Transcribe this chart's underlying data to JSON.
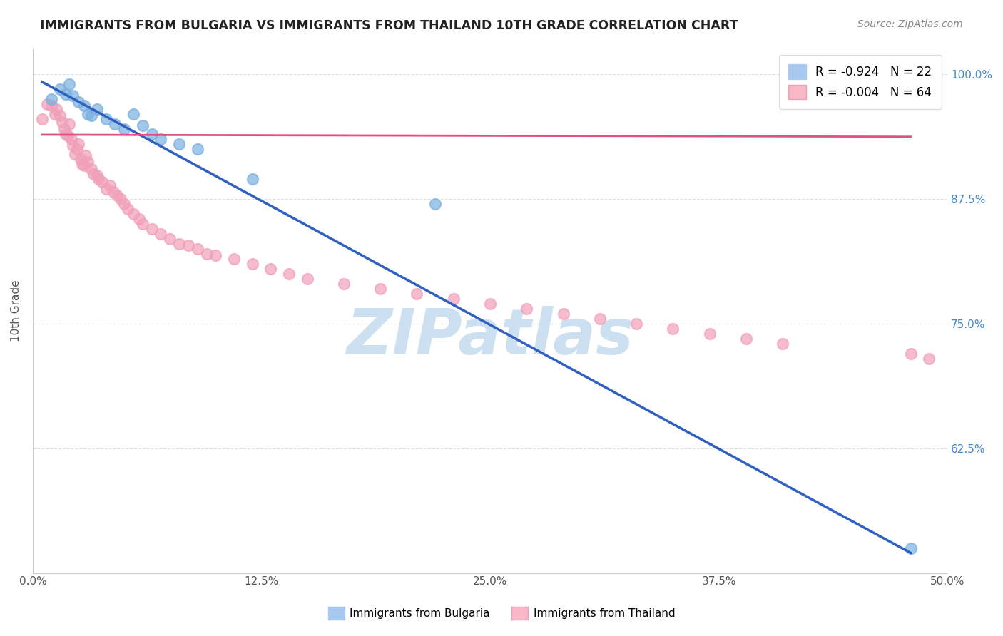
{
  "title": "IMMIGRANTS FROM BULGARIA VS IMMIGRANTS FROM THAILAND 10TH GRADE CORRELATION CHART",
  "source": "Source: ZipAtlas.com",
  "ylabel": "10th Grade",
  "xlim": [
    0.0,
    0.5
  ],
  "ylim": [
    0.5,
    1.025
  ],
  "xtick_labels": [
    "0.0%",
    "12.5%",
    "25.0%",
    "37.5%",
    "50.0%"
  ],
  "xtick_vals": [
    0.0,
    0.125,
    0.25,
    0.375,
    0.5
  ],
  "ytick_labels": [
    "62.5%",
    "75.0%",
    "87.5%",
    "100.0%"
  ],
  "ytick_vals": [
    0.625,
    0.75,
    0.875,
    1.0
  ],
  "legend_labels": [
    "R = -0.924   N = 22",
    "R = -0.004   N = 64"
  ],
  "legend_colors": [
    "#a8c8f0",
    "#f8b8c8"
  ],
  "bulgaria_color": "#7ab0e0",
  "thailand_color": "#f0a0b8",
  "line_bulgaria_color": "#3060c0",
  "line_thailand_color": "#e05080",
  "watermark": "ZIPatlas",
  "watermark_color": "#c8ddf0",
  "bg_color": "#ffffff",
  "grid_color": "#e0e0e0",
  "bulgaria_x": [
    0.01,
    0.015,
    0.018,
    0.02,
    0.022,
    0.025,
    0.028,
    0.03,
    0.032,
    0.035,
    0.04,
    0.045,
    0.05,
    0.055,
    0.06,
    0.065,
    0.07,
    0.08,
    0.09,
    0.12,
    0.22,
    0.48
  ],
  "bulgaria_y": [
    0.975,
    0.985,
    0.98,
    0.99,
    0.978,
    0.972,
    0.968,
    0.96,
    0.958,
    0.965,
    0.955,
    0.95,
    0.945,
    0.96,
    0.948,
    0.94,
    0.935,
    0.93,
    0.925,
    0.895,
    0.87,
    0.525
  ],
  "thailand_x": [
    0.005,
    0.008,
    0.01,
    0.012,
    0.013,
    0.015,
    0.016,
    0.017,
    0.018,
    0.019,
    0.02,
    0.021,
    0.022,
    0.023,
    0.024,
    0.025,
    0.026,
    0.027,
    0.028,
    0.029,
    0.03,
    0.032,
    0.033,
    0.035,
    0.036,
    0.038,
    0.04,
    0.042,
    0.044,
    0.046,
    0.048,
    0.05,
    0.052,
    0.055,
    0.058,
    0.06,
    0.065,
    0.07,
    0.075,
    0.08,
    0.085,
    0.09,
    0.095,
    0.1,
    0.11,
    0.12,
    0.13,
    0.14,
    0.15,
    0.17,
    0.19,
    0.21,
    0.23,
    0.25,
    0.27,
    0.29,
    0.31,
    0.33,
    0.35,
    0.37,
    0.39,
    0.41,
    0.48,
    0.49
  ],
  "thailand_y": [
    0.955,
    0.97,
    0.968,
    0.96,
    0.965,
    0.958,
    0.952,
    0.945,
    0.94,
    0.938,
    0.95,
    0.935,
    0.928,
    0.92,
    0.925,
    0.93,
    0.915,
    0.91,
    0.908,
    0.918,
    0.912,
    0.905,
    0.9,
    0.898,
    0.895,
    0.892,
    0.885,
    0.888,
    0.882,
    0.878,
    0.875,
    0.87,
    0.865,
    0.86,
    0.855,
    0.85,
    0.845,
    0.84,
    0.835,
    0.83,
    0.828,
    0.825,
    0.82,
    0.818,
    0.815,
    0.81,
    0.805,
    0.8,
    0.795,
    0.79,
    0.785,
    0.78,
    0.775,
    0.77,
    0.765,
    0.76,
    0.755,
    0.75,
    0.745,
    0.74,
    0.735,
    0.73,
    0.72,
    0.715
  ],
  "bulgaria_line_x": [
    0.005,
    0.48
  ],
  "bulgaria_line_y": [
    0.992,
    0.52
  ],
  "thailand_line_x": [
    0.005,
    0.48
  ],
  "thailand_line_y": [
    0.939,
    0.937
  ]
}
